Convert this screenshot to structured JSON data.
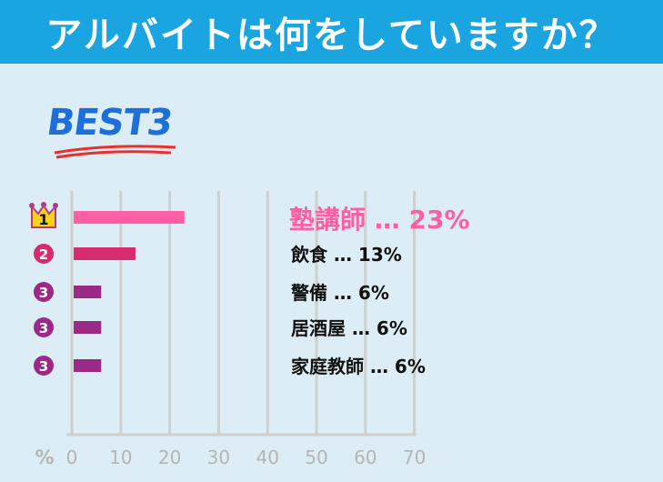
{
  "header": {
    "title": "アルバイトは何をしていますか？"
  },
  "badge": {
    "label": "BEST3"
  },
  "colors": {
    "header": "#1aa5e0",
    "bar1": "#ff5ea4",
    "bar2": "#d62b6e",
    "bar3": "#9b2a87",
    "best": "#1e6fd9",
    "grid": "#cfcfcf"
  },
  "chart_data": {
    "type": "bar",
    "orientation": "horizontal",
    "categories": [
      "塾講師",
      "飲食",
      "警備",
      "居酒屋",
      "家庭教師"
    ],
    "values": [
      23,
      13,
      6,
      6,
      6
    ],
    "ranks": [
      "1",
      "2",
      "3",
      "3",
      "3"
    ],
    "xlabel": "%",
    "xlim": [
      0,
      70
    ],
    "xticks": [
      0,
      10,
      20,
      30,
      40,
      50,
      60,
      70
    ],
    "data_labels": [
      "23%",
      "13%",
      "6%",
      "6%",
      "6%"
    ],
    "separator": "…",
    "grid": true
  }
}
